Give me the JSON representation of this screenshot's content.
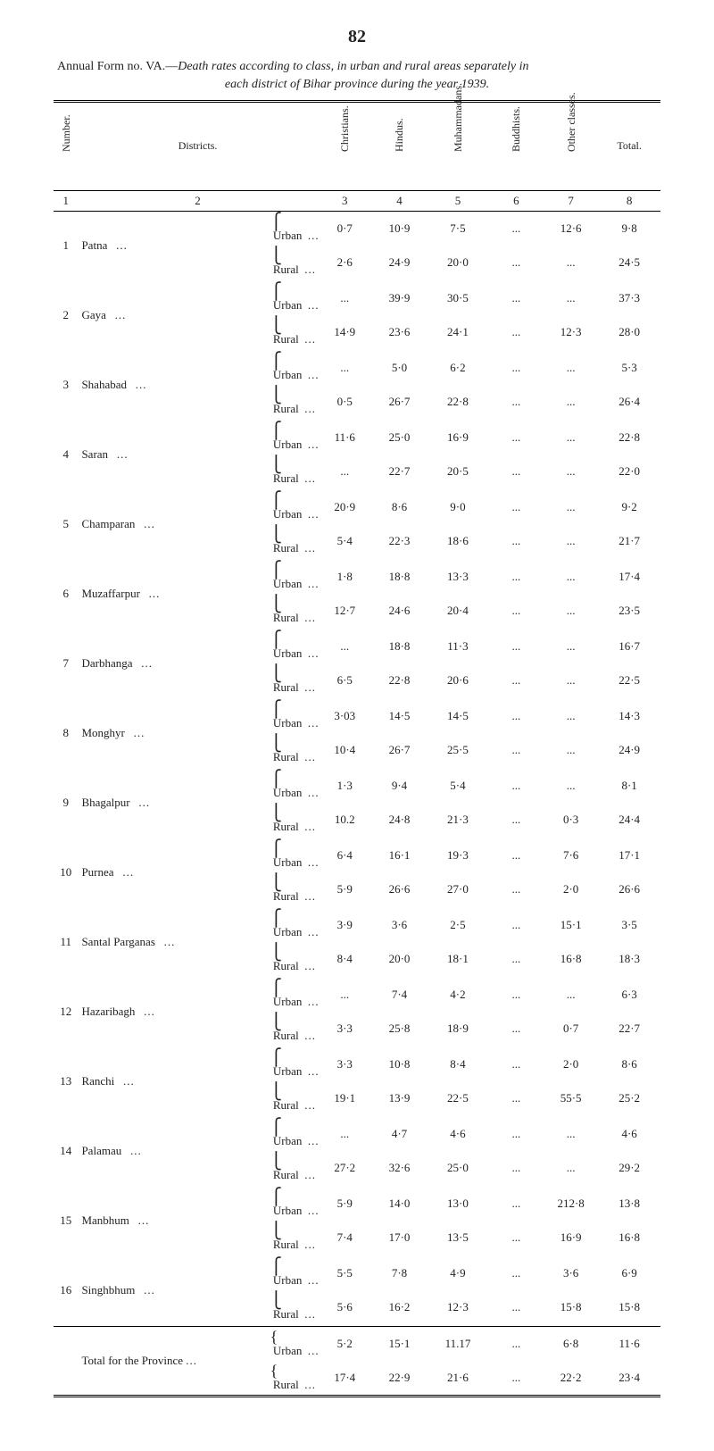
{
  "page_number": "82",
  "title_line1_prefix": "Annual Form no. VA.—",
  "title_line1_rest": "Death rates according to class, in urban and rural areas separately in",
  "title_line2": "each district of Bihar province during the year 1939.",
  "headers": {
    "number": "Number.",
    "districts": "Districts.",
    "christians": "Christians.",
    "hindus": "Hindus.",
    "muhammadans": "Muhammadans.",
    "buddhists": "Buddhists.",
    "other": "Other classes.",
    "total": "Total."
  },
  "colnums": [
    "1",
    "2",
    "3",
    "4",
    "5",
    "6",
    "7",
    "8"
  ],
  "sub_labels": {
    "urban": "Urban",
    "rural": "Rural"
  },
  "ellipsis": "...",
  "dash": "…",
  "rows": [
    {
      "n": "1",
      "name": "Patna",
      "urban": {
        "c": "0·7",
        "h": "10·9",
        "m": "7·5",
        "b": "...",
        "o": "12·6",
        "t": "9·8"
      },
      "rural": {
        "c": "2·6",
        "h": "24·9",
        "m": "20·0",
        "b": "...",
        "o": "...",
        "t": "24·5"
      }
    },
    {
      "n": "2",
      "name": "Gaya",
      "urban": {
        "c": "...",
        "h": "39·9",
        "m": "30·5",
        "b": "...",
        "o": "...",
        "t": "37·3"
      },
      "rural": {
        "c": "14·9",
        "h": "23·6",
        "m": "24·1",
        "b": "...",
        "o": "12·3",
        "t": "28·0"
      }
    },
    {
      "n": "3",
      "name": "Shahabad",
      "urban": {
        "c": "...",
        "h": "5·0",
        "m": "6·2",
        "b": "...",
        "o": "...",
        "t": "5·3"
      },
      "rural": {
        "c": "0·5",
        "h": "26·7",
        "m": "22·8",
        "b": "...",
        "o": "...",
        "t": "26·4"
      }
    },
    {
      "n": "4",
      "name": "Saran",
      "urban": {
        "c": "11·6",
        "h": "25·0",
        "m": "16·9",
        "b": "...",
        "o": "...",
        "t": "22·8"
      },
      "rural": {
        "c": "...",
        "h": "22·7",
        "m": "20·5",
        "b": "...",
        "o": "...",
        "t": "22·0"
      }
    },
    {
      "n": "5",
      "name": "Champaran",
      "urban": {
        "c": "20·9",
        "h": "8·6",
        "m": "9·0",
        "b": "...",
        "o": "...",
        "t": "9·2"
      },
      "rural": {
        "c": "5·4",
        "h": "22·3",
        "m": "18·6",
        "b": "...",
        "o": "...",
        "t": "21·7"
      }
    },
    {
      "n": "6",
      "name": "Muzaffarpur",
      "urban": {
        "c": "1·8",
        "h": "18·8",
        "m": "13·3",
        "b": "...",
        "o": "...",
        "t": "17·4"
      },
      "rural": {
        "c": "12·7",
        "h": "24·6",
        "m": "20·4",
        "b": "...",
        "o": "...",
        "t": "23·5"
      }
    },
    {
      "n": "7",
      "name": "Darbhanga",
      "urban": {
        "c": "...",
        "h": "18·8",
        "m": "11·3",
        "b": "...",
        "o": "...",
        "t": "16·7"
      },
      "rural": {
        "c": "6·5",
        "h": "22·8",
        "m": "20·6",
        "b": "...",
        "o": "...",
        "t": "22·5"
      }
    },
    {
      "n": "8",
      "name": "Monghyr",
      "urban": {
        "c": "3·03",
        "h": "14·5",
        "m": "14·5",
        "b": "...",
        "o": "...",
        "t": "14·3"
      },
      "rural": {
        "c": "10·4",
        "h": "26·7",
        "m": "25·5",
        "b": "...",
        "o": "...",
        "t": "24·9"
      }
    },
    {
      "n": "9",
      "name": "Bhagalpur",
      "urban": {
        "c": "1·3",
        "h": "9·4",
        "m": "5·4",
        "b": "...",
        "o": "...",
        "t": "8·1"
      },
      "rural": {
        "c": "10.2",
        "h": "24·8",
        "m": "21·3",
        "b": "...",
        "o": "0·3",
        "t": "24·4"
      }
    },
    {
      "n": "10",
      "name": "Purnea",
      "urban": {
        "c": "6·4",
        "h": "16·1",
        "m": "19·3",
        "b": "...",
        "o": "7·6",
        "t": "17·1"
      },
      "rural": {
        "c": "5·9",
        "h": "26·6",
        "m": "27·0",
        "b": "...",
        "o": "2·0",
        "t": "26·6"
      }
    },
    {
      "n": "11",
      "name": "Santal Parganas",
      "urban": {
        "c": "3·9",
        "h": "3·6",
        "m": "2·5",
        "b": "...",
        "o": "15·1",
        "t": "3·5"
      },
      "rural": {
        "c": "8·4",
        "h": "20·0",
        "m": "18·1",
        "b": "...",
        "o": "16·8",
        "t": "18·3"
      }
    },
    {
      "n": "12",
      "name": "Hazaribagh",
      "urban": {
        "c": "...",
        "h": "7·4",
        "m": "4·2",
        "b": "...",
        "o": "...",
        "t": "6·3"
      },
      "rural": {
        "c": "3·3",
        "h": "25·8",
        "m": "18·9",
        "b": "...",
        "o": "0·7",
        "t": "22·7"
      }
    },
    {
      "n": "13",
      "name": "Ranchi",
      "urban": {
        "c": "3·3",
        "h": "10·8",
        "m": "8·4",
        "b": "...",
        "o": "2·0",
        "t": "8·6"
      },
      "rural": {
        "c": "19·1",
        "h": "13·9",
        "m": "22·5",
        "b": "...",
        "o": "55·5",
        "t": "25·2"
      }
    },
    {
      "n": "14",
      "name": "Palamau",
      "urban": {
        "c": "...",
        "h": "4·7",
        "m": "4·6",
        "b": "...",
        "o": "...",
        "t": "4·6"
      },
      "rural": {
        "c": "27·2",
        "h": "32·6",
        "m": "25·0",
        "b": "...",
        "o": "...",
        "t": "29·2"
      }
    },
    {
      "n": "15",
      "name": "Manbhum",
      "urban": {
        "c": "5·9",
        "h": "14·0",
        "m": "13·0",
        "b": "...",
        "o": "212·8",
        "t": "13·8"
      },
      "rural": {
        "c": "7·4",
        "h": "17·0",
        "m": "13·5",
        "b": "...",
        "o": "16·9",
        "t": "16·8"
      }
    },
    {
      "n": "16",
      "name": "Singhbhum",
      "urban": {
        "c": "5·5",
        "h": "7·8",
        "m": "4·9",
        "b": "...",
        "o": "3·6",
        "t": "6·9"
      },
      "rural": {
        "c": "5·6",
        "h": "16·2",
        "m": "12·3",
        "b": "...",
        "o": "15·8",
        "t": "15·8"
      }
    }
  ],
  "total_label": "Total for the Province",
  "total": {
    "urban": {
      "c": "5·2",
      "h": "15·1",
      "m": "11.17",
      "b": "...",
      "o": "6·8",
      "t": "11·6"
    },
    "rural": {
      "c": "17·4",
      "h": "22·9",
      "m": "21·6",
      "b": "...",
      "o": "22·2",
      "t": "23·4"
    }
  }
}
